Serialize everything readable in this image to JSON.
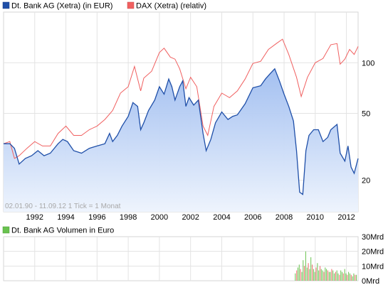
{
  "chart_data": {
    "type": "line",
    "legend": {
      "bank_series": "Dt. Bank AG (Xetra) (in EUR)",
      "dax_series": "DAX (Xetra) (relativ)",
      "volume_series": "Dt. Bank AG Volumen in Euro"
    },
    "colors": {
      "bank": "#1f4fa8",
      "bank_fill": "#c6d8f7",
      "dax": "#f06060",
      "volume": "#69c24f",
      "volume_accent": "#ee6a6a",
      "grid": "#e3e3e3"
    },
    "date_range_label": "02.01.90 - 11.09.12   1 Tick = 1 Monat",
    "x_range": [
      1990.0,
      2012.75
    ],
    "x_ticks": [
      "1992",
      "1994",
      "1996",
      "1998",
      "2000",
      "2002",
      "2004",
      "2006",
      "2008",
      "2010",
      "2012"
    ],
    "y_log_scale": true,
    "y_range": [
      13,
      200
    ],
    "y_ticks": [
      {
        "value": 20,
        "label": "20"
      },
      {
        "value": 50,
        "label": "50"
      },
      {
        "value": 100,
        "label": "100"
      }
    ],
    "series": [
      {
        "name": "Dt. Bank AG (Xetra) (in EUR)",
        "points": [
          [
            1990.0,
            33
          ],
          [
            1990.4,
            33
          ],
          [
            1990.7,
            31
          ],
          [
            1991.0,
            25
          ],
          [
            1991.4,
            27
          ],
          [
            1991.8,
            28
          ],
          [
            1992.2,
            30
          ],
          [
            1992.6,
            28
          ],
          [
            1993.0,
            29
          ],
          [
            1993.5,
            33
          ],
          [
            1993.8,
            35
          ],
          [
            1994.1,
            34
          ],
          [
            1994.5,
            30
          ],
          [
            1995.0,
            29
          ],
          [
            1995.5,
            31
          ],
          [
            1996.0,
            32
          ],
          [
            1996.5,
            33
          ],
          [
            1996.8,
            38
          ],
          [
            1997.0,
            34
          ],
          [
            1997.3,
            37
          ],
          [
            1997.6,
            42
          ],
          [
            1998.0,
            48
          ],
          [
            1998.3,
            58
          ],
          [
            1998.6,
            55
          ],
          [
            1998.8,
            40
          ],
          [
            1999.0,
            44
          ],
          [
            1999.3,
            52
          ],
          [
            1999.7,
            60
          ],
          [
            2000.0,
            72
          ],
          [
            2000.3,
            65
          ],
          [
            2000.6,
            80
          ],
          [
            2000.8,
            72
          ],
          [
            2001.0,
            60
          ],
          [
            2001.3,
            72
          ],
          [
            2001.5,
            78
          ],
          [
            2001.7,
            55
          ],
          [
            2001.9,
            62
          ],
          [
            2002.2,
            56
          ],
          [
            2002.5,
            60
          ],
          [
            2002.8,
            38
          ],
          [
            2003.0,
            30
          ],
          [
            2003.3,
            35
          ],
          [
            2003.6,
            44
          ],
          [
            2004.0,
            51
          ],
          [
            2004.4,
            46
          ],
          [
            2004.7,
            48
          ],
          [
            2005.0,
            49
          ],
          [
            2005.5,
            57
          ],
          [
            2006.0,
            71
          ],
          [
            2006.5,
            73
          ],
          [
            2006.8,
            80
          ],
          [
            2007.1,
            86
          ],
          [
            2007.4,
            92
          ],
          [
            2007.7,
            78
          ],
          [
            2008.0,
            65
          ],
          [
            2008.3,
            55
          ],
          [
            2008.6,
            45
          ],
          [
            2008.8,
            30
          ],
          [
            2009.0,
            17
          ],
          [
            2009.2,
            16.5
          ],
          [
            2009.4,
            30
          ],
          [
            2009.6,
            37
          ],
          [
            2009.9,
            40
          ],
          [
            2010.2,
            40
          ],
          [
            2010.5,
            34
          ],
          [
            2010.8,
            36
          ],
          [
            2011.0,
            40
          ],
          [
            2011.4,
            43
          ],
          [
            2011.6,
            29
          ],
          [
            2011.9,
            26
          ],
          [
            2012.1,
            32
          ],
          [
            2012.3,
            24
          ],
          [
            2012.5,
            22
          ],
          [
            2012.75,
            27
          ]
        ]
      },
      {
        "name": "DAX (Xetra) (relativ)",
        "points": [
          [
            1990.0,
            33
          ],
          [
            1990.4,
            34
          ],
          [
            1990.7,
            27
          ],
          [
            1991.0,
            28
          ],
          [
            1991.5,
            31
          ],
          [
            1992.0,
            34
          ],
          [
            1992.5,
            32
          ],
          [
            1993.0,
            32
          ],
          [
            1993.5,
            38
          ],
          [
            1994.0,
            42
          ],
          [
            1994.5,
            37
          ],
          [
            1995.0,
            37
          ],
          [
            1995.5,
            40
          ],
          [
            1996.0,
            42
          ],
          [
            1996.5,
            46
          ],
          [
            1997.0,
            52
          ],
          [
            1997.5,
            66
          ],
          [
            1998.0,
            72
          ],
          [
            1998.4,
            95
          ],
          [
            1998.8,
            68
          ],
          [
            1999.0,
            81
          ],
          [
            1999.5,
            89
          ],
          [
            2000.0,
            115
          ],
          [
            2000.3,
            122
          ],
          [
            2000.7,
            108
          ],
          [
            2001.0,
            105
          ],
          [
            2001.3,
            92
          ],
          [
            2001.7,
            70
          ],
          [
            2002.0,
            82
          ],
          [
            2002.4,
            72
          ],
          [
            2002.8,
            42
          ],
          [
            2003.1,
            37
          ],
          [
            2003.5,
            55
          ],
          [
            2004.0,
            66
          ],
          [
            2004.5,
            62
          ],
          [
            2005.0,
            68
          ],
          [
            2005.5,
            80
          ],
          [
            2006.0,
            99
          ],
          [
            2006.5,
            102
          ],
          [
            2007.0,
            120
          ],
          [
            2007.5,
            130
          ],
          [
            2007.9,
            138
          ],
          [
            2008.3,
            112
          ],
          [
            2008.8,
            82
          ],
          [
            2009.1,
            63
          ],
          [
            2009.5,
            82
          ],
          [
            2010.0,
            100
          ],
          [
            2010.5,
            106
          ],
          [
            2011.0,
            128
          ],
          [
            2011.4,
            130
          ],
          [
            2011.6,
            98
          ],
          [
            2011.9,
            105
          ],
          [
            2012.2,
            120
          ],
          [
            2012.5,
            112
          ],
          [
            2012.75,
            125
          ]
        ]
      }
    ],
    "volume": {
      "name": "Dt. Bank AG Volumen in Euro",
      "y_ticks": [
        "30Mrd",
        "20Mrd",
        "10Mrd",
        "0Mrd"
      ],
      "y_max_bn": 30,
      "start": 2008.7,
      "end": 2012.7,
      "bars_bn": [
        5,
        7,
        9,
        11,
        8,
        6,
        14,
        10,
        20,
        9,
        12,
        8,
        16,
        11,
        8,
        6,
        9,
        12,
        7,
        10,
        8,
        7,
        6,
        9,
        8,
        7,
        6,
        6,
        8,
        7,
        5,
        6,
        7,
        5,
        4,
        7,
        6,
        5,
        8,
        5,
        4,
        6,
        5,
        4,
        3,
        5,
        4,
        4
      ]
    }
  }
}
